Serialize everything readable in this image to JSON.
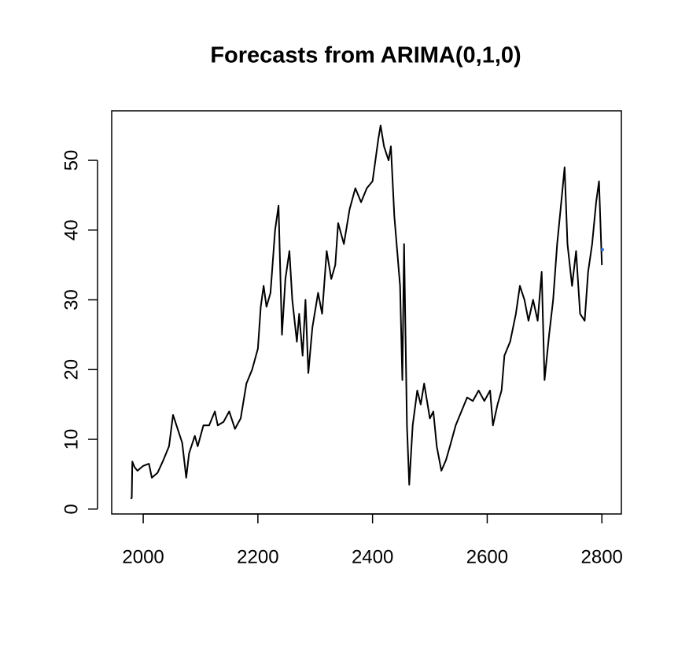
{
  "chart_data": {
    "type": "line",
    "title": "Forecasts from ARIMA(0,1,0)",
    "xlim": [
      1945,
      2834
    ],
    "ylim": [
      -0.7,
      57.1
    ],
    "xticks": [
      2000,
      2200,
      2400,
      2600,
      2800
    ],
    "yticks": [
      0,
      10,
      20,
      30,
      40,
      50
    ],
    "grid": false,
    "series": [
      {
        "color": "#000000",
        "x": [
          1978,
          1980,
          1981,
          1985,
          1990,
          2000,
          2010,
          2015,
          2025,
          2035,
          2045,
          2052,
          2060,
          2068,
          2075,
          2080,
          2090,
          2095,
          2105,
          2115,
          2125,
          2130,
          2140,
          2150,
          2160,
          2170,
          2180,
          2190,
          2200,
          2205,
          2210,
          2215,
          2222,
          2230,
          2236,
          2242,
          2248,
          2255,
          2260,
          2268,
          2272,
          2278,
          2283,
          2288,
          2295,
          2305,
          2312,
          2320,
          2328,
          2335,
          2340,
          2350,
          2360,
          2370,
          2380,
          2390,
          2400,
          2410,
          2414,
          2420,
          2428,
          2432,
          2438,
          2443,
          2448,
          2452,
          2455,
          2460,
          2464,
          2470,
          2478,
          2484,
          2490,
          2500,
          2506,
          2512,
          2520,
          2528,
          2535,
          2545,
          2555,
          2565,
          2575,
          2585,
          2595,
          2605,
          2610,
          2618,
          2625,
          2630,
          2640,
          2650,
          2657,
          2665,
          2672,
          2680,
          2688,
          2695,
          2700,
          2708,
          2715,
          2722,
          2728,
          2735,
          2740,
          2748,
          2755,
          2762,
          2770,
          2776,
          2783,
          2790,
          2795,
          2800
        ],
        "values": [
          1.5,
          1.6,
          6.8,
          6,
          5.5,
          6.2,
          6.5,
          4.5,
          5.2,
          7,
          9,
          13.5,
          11.5,
          9.5,
          4.5,
          8,
          10.5,
          9,
          12,
          12,
          14,
          12,
          12.5,
          14,
          11.5,
          13,
          18,
          20,
          23,
          29,
          32,
          29,
          31,
          40,
          43.5,
          25,
          33,
          37,
          30,
          24,
          28,
          22,
          30,
          19.5,
          26,
          31,
          28,
          37,
          33,
          35,
          41,
          38,
          43,
          46,
          44,
          46,
          47,
          53,
          55,
          52,
          50,
          52,
          42,
          37,
          32,
          18.5,
          38,
          12,
          3.5,
          12,
          17,
          15,
          18,
          13,
          14,
          9,
          5.5,
          7,
          9,
          12,
          14,
          16,
          15.5,
          17,
          15.5,
          17,
          12,
          15,
          17,
          22,
          24,
          28,
          32,
          30,
          27,
          30,
          27,
          34,
          18.5,
          25,
          30,
          38,
          43,
          49,
          38,
          32,
          37,
          28,
          27,
          34,
          38,
          44,
          47,
          35
        ]
      },
      {
        "color": "#2b6fd6",
        "x": [
          2801
        ],
        "values": [
          37.2
        ]
      }
    ]
  }
}
